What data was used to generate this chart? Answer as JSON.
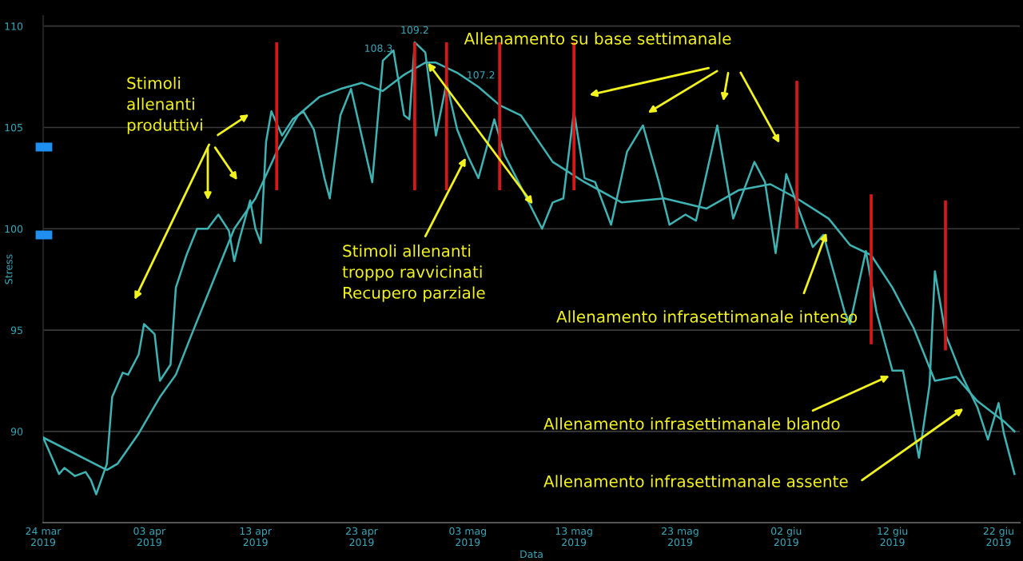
{
  "chart_data": {
    "type": "line",
    "xlabel": "Data",
    "ylabel": "Stress",
    "xlim": [
      "2019-03-24",
      "2019-06-24"
    ],
    "ylim": [
      85.5,
      110.5
    ],
    "xticks": [
      {
        "value": "2019-03-24",
        "label": "24 mar\n2019"
      },
      {
        "value": "2019-04-03",
        "label": "03 apr\n2019"
      },
      {
        "value": "2019-04-13",
        "label": "13 apr\n2019"
      },
      {
        "value": "2019-04-23",
        "label": "23 apr\n2019"
      },
      {
        "value": "2019-05-03",
        "label": "03 mag\n2019"
      },
      {
        "value": "2019-05-13",
        "label": "13 mag\n2019"
      },
      {
        "value": "2019-05-23",
        "label": "23 mag\n2019"
      },
      {
        "value": "2019-06-02",
        "label": "02 giu\n2019"
      },
      {
        "value": "2019-06-12",
        "label": "12 giu\n2019"
      },
      {
        "value": "2019-06-22",
        "label": "22 giu\n2019"
      }
    ],
    "yticks": [
      90,
      95,
      100,
      105,
      110
    ],
    "grid": "y",
    "legend": false,
    "marker": "none",
    "line_style": "solid",
    "series": [
      {
        "color": "#3fb3b3",
        "x": [
          "2019-03-24",
          "2019-03-25T12:00",
          "2019-03-26",
          "2019-03-27",
          "2019-03-28",
          "2019-03-28T12:00",
          "2019-03-29",
          "2019-03-30",
          "2019-03-30T12:00",
          "2019-03-31T12:00",
          "2019-04-01",
          "2019-04-02",
          "2019-04-02T12:00",
          "2019-04-03T12:00",
          "2019-04-04",
          "2019-04-05",
          "2019-04-05T12:00",
          "2019-04-06T12:00",
          "2019-04-07T12:00",
          "2019-04-08T12:00",
          "2019-04-09T12:00",
          "2019-04-10T12:00",
          "2019-04-11",
          "2019-04-11T12:00",
          "2019-04-12T12:00",
          "2019-04-13",
          "2019-04-13T12:00",
          "2019-04-14",
          "2019-04-14T12:00",
          "2019-04-15T12:00",
          "2019-04-16T12:00",
          "2019-04-17T12:00",
          "2019-04-18T12:00",
          "2019-04-19T12:00",
          "2019-04-20",
          "2019-04-21",
          "2019-04-22",
          "2019-04-23",
          "2019-04-24",
          "2019-04-25",
          "2019-04-26",
          "2019-04-27",
          "2019-04-27T12:00",
          "2019-04-28",
          "2019-04-29",
          "2019-04-30",
          "2019-05-01",
          "2019-05-02",
          "2019-05-03",
          "2019-05-04",
          "2019-05-05T12:00",
          "2019-05-06T12:00",
          "2019-05-07",
          "2019-05-10",
          "2019-05-11",
          "2019-05-12",
          "2019-05-13",
          "2019-05-14",
          "2019-05-15",
          "2019-05-16T12:00",
          "2019-05-18",
          "2019-05-19T12:00",
          "2019-05-21",
          "2019-05-22",
          "2019-05-23T12:00",
          "2019-05-24T12:00",
          "2019-05-26T12:00",
          "2019-05-28",
          "2019-05-30",
          "2019-05-31",
          "2019-06-01",
          "2019-06-02",
          "2019-06-03T12:00",
          "2019-06-04T12:00",
          "2019-06-05T12:00",
          "2019-06-07T12:00",
          "2019-06-08",
          "2019-06-09T12:00",
          "2019-06-10T12:00",
          "2019-06-12",
          "2019-06-13",
          "2019-06-14T12:00",
          "2019-06-15T12:00",
          "2019-06-16",
          "2019-06-17",
          "2019-06-18T12:00",
          "2019-06-20",
          "2019-06-21",
          "2019-06-22",
          "2019-06-22T12:00",
          "2019-06-23T12:00"
        ],
        "values": [
          89.7,
          87.9,
          88.2,
          87.8,
          88.0,
          87.6,
          86.9,
          88.4,
          91.7,
          92.9,
          92.8,
          93.8,
          95.3,
          94.8,
          92.5,
          93.3,
          97.1,
          98.7,
          100.0,
          100.0,
          100.7,
          99.9,
          98.4,
          99.5,
          101.4,
          100.0,
          99.3,
          104.3,
          105.8,
          104.6,
          105.4,
          105.8,
          104.9,
          102.5,
          101.5,
          105.6,
          106.9,
          104.6,
          102.3,
          108.3,
          108.8,
          105.6,
          105.4,
          109.2,
          108.7,
          104.6,
          107.2,
          104.9,
          103.6,
          102.5,
          105.4,
          103.6,
          103.1,
          100.0,
          101.3,
          101.5,
          105.8,
          102.5,
          102.3,
          100.2,
          103.8,
          105.1,
          102.3,
          100.2,
          100.7,
          100.4,
          105.1,
          100.5,
          103.3,
          102.3,
          98.8,
          102.7,
          100.5,
          99.1,
          99.7,
          95.9,
          95.3,
          98.9,
          95.9,
          93.0,
          93.0,
          88.7,
          92.3,
          97.9,
          94.8,
          92.8,
          91.2,
          89.6,
          91.4,
          89.9,
          87.9
        ]
      },
      {
        "color": "#3fb3b3",
        "x": [
          "2019-03-24",
          "2019-03-30",
          "2019-03-31",
          "2019-04-02",
          "2019-04-04",
          "2019-04-05T12:00",
          "2019-04-07",
          "2019-04-09",
          "2019-04-11",
          "2019-04-13",
          "2019-04-15",
          "2019-04-17",
          "2019-04-19",
          "2019-04-21",
          "2019-04-23",
          "2019-04-25",
          "2019-04-27",
          "2019-04-29",
          "2019-04-30",
          "2019-05-02",
          "2019-05-04",
          "2019-05-06",
          "2019-05-08",
          "2019-05-11",
          "2019-05-14",
          "2019-05-17T12:00",
          "2019-05-21T12:00",
          "2019-05-25T12:00",
          "2019-05-28T12:00",
          "2019-05-31T12:00",
          "2019-06-03",
          "2019-06-06",
          "2019-06-08",
          "2019-06-10",
          "2019-06-12",
          "2019-06-14",
          "2019-06-16",
          "2019-06-18",
          "2019-06-20",
          "2019-06-22T12:00",
          "2019-06-23T12:00"
        ],
        "values": [
          89.7,
          88.1,
          88.4,
          89.9,
          91.7,
          92.8,
          94.8,
          97.4,
          100.0,
          101.5,
          103.8,
          105.6,
          106.5,
          106.9,
          107.2,
          106.8,
          107.6,
          108.2,
          108.2,
          107.7,
          107.0,
          106.1,
          105.6,
          103.3,
          102.3,
          101.3,
          101.5,
          101.0,
          101.9,
          102.2,
          101.5,
          100.5,
          99.2,
          98.7,
          97.1,
          95.1,
          92.5,
          92.7,
          91.5,
          90.5,
          90.0
        ]
      },
      {
        "type": "bar",
        "color": "#d81818",
        "x": [
          "2019-04-15",
          "2019-04-28",
          "2019-05-01",
          "2019-05-06",
          "2019-05-13",
          "2019-06-03",
          "2019-06-10",
          "2019-06-17"
        ],
        "base": [
          101.9,
          101.9,
          101.9,
          101.9,
          101.9,
          100.0,
          94.3,
          94.0
        ],
        "values": [
          7.3,
          7.3,
          7.3,
          7.3,
          7.3,
          7.3,
          7.4,
          7.4
        ]
      }
    ],
    "annotations": [
      {
        "text": "108.3",
        "x": "2019-04-25",
        "y": 108.3
      },
      {
        "text": "109.2",
        "x": "2019-04-28",
        "y": 109.2
      },
      {
        "text": "107.2",
        "x": "2019-05-01",
        "y": 107.2
      },
      "Stimoli\nallenanti\nproduttivi",
      {
        "text": "Stimoli allenanti\ntroppo ravvicinati\nRecupero parziale",
        "x": "2019-05-03",
        "y": 103.7
      },
      "Allenamento su base settimanale",
      "Allenamento infrasettimanale intenso",
      "Allenamento infrasettimanale blando",
      "Allenamento infrasettimanale assente"
    ]
  }
}
